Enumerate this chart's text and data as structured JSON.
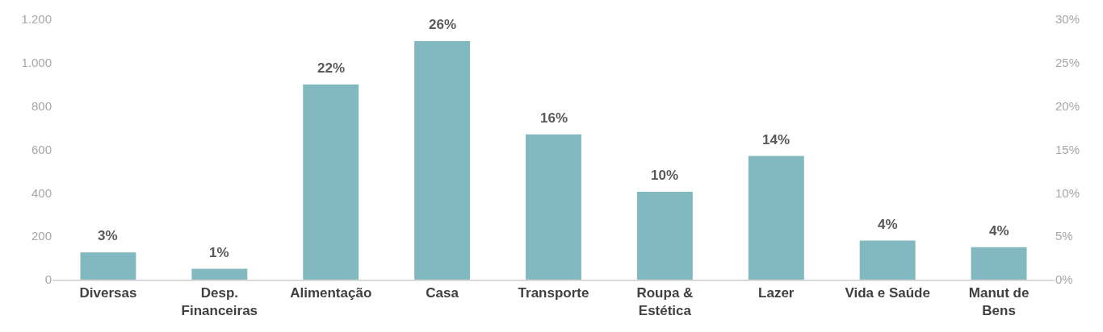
{
  "chart_data": {
    "type": "bar",
    "categories": [
      "Diversas",
      "Desp. Financeiras",
      "Alimentação",
      "Casa",
      "Transporte",
      "Roupa & Estética",
      "Lazer",
      "Vida e Saúde",
      "Manut de Bens"
    ],
    "values": [
      125,
      50,
      900,
      1100,
      670,
      405,
      570,
      180,
      150
    ],
    "color": "#82b9c0",
    "annotations": [
      {
        "text": "3%",
        "x": "Diversas",
        "y": 125
      },
      {
        "text": "1%",
        "x": "Desp. Financeiras",
        "y": 50
      },
      {
        "text": "22%",
        "x": "Alimentação",
        "y": 900
      },
      {
        "text": "26%",
        "x": "Casa",
        "y": 1100
      },
      {
        "text": "16%",
        "x": "Transporte",
        "y": 670
      },
      {
        "text": "10%",
        "x": "Roupa & Estética",
        "y": 405
      },
      {
        "text": "14%",
        "x": "Lazer",
        "y": 570
      },
      {
        "text": "4%",
        "x": "Vida e Saúde",
        "y": 180
      },
      {
        "text": "4%",
        "x": "Manut de Bens",
        "y": 150
      }
    ],
    "ylim": [
      0,
      1200
    ],
    "yticks": [
      0,
      200,
      400,
      600,
      800,
      {
        "value": 1000,
        "label": "1.000"
      },
      {
        "value": 1200,
        "label": "1.200"
      }
    ],
    "y2lim": [
      0,
      30
    ],
    "y2ticks": [
      {
        "value": 0,
        "label": "0%"
      },
      {
        "value": 5,
        "label": "5%"
      },
      {
        "value": 10,
        "label": "10%"
      },
      {
        "value": 15,
        "label": "15%"
      },
      {
        "value": 20,
        "label": "20%"
      },
      {
        "value": 25,
        "label": "25%"
      },
      {
        "value": 30,
        "label": "30%"
      }
    ],
    "legend": false
  }
}
